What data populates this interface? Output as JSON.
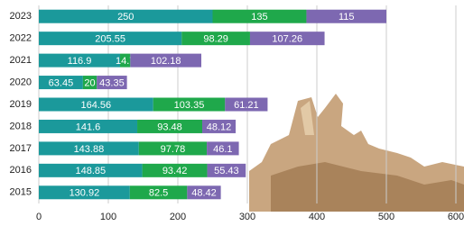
{
  "chart_data": {
    "type": "stacked-barh",
    "categories": [
      "2023",
      "2022",
      "2021",
      "2020",
      "2019",
      "2018",
      "2017",
      "2016",
      "2015"
    ],
    "series": [
      {
        "color": "#1b999b",
        "values": [
          250,
          205.55,
          116.9,
          63.45,
          164.56,
          141.6,
          143.88,
          148.85,
          130.92
        ]
      },
      {
        "color": "#1fa84b",
        "values": [
          135,
          98.29,
          14.7,
          20,
          103.35,
          93.48,
          97.78,
          93.42,
          82.5
        ]
      },
      {
        "color": "#7d68b1",
        "values": [
          115,
          107.26,
          102.18,
          43.35,
          61.21,
          48.12,
          46.1,
          55.43,
          48.42
        ]
      }
    ],
    "xlim": [
      0,
      600
    ],
    "xticks": [
      0,
      100,
      200,
      300,
      400,
      500,
      600
    ],
    "grid": true
  }
}
